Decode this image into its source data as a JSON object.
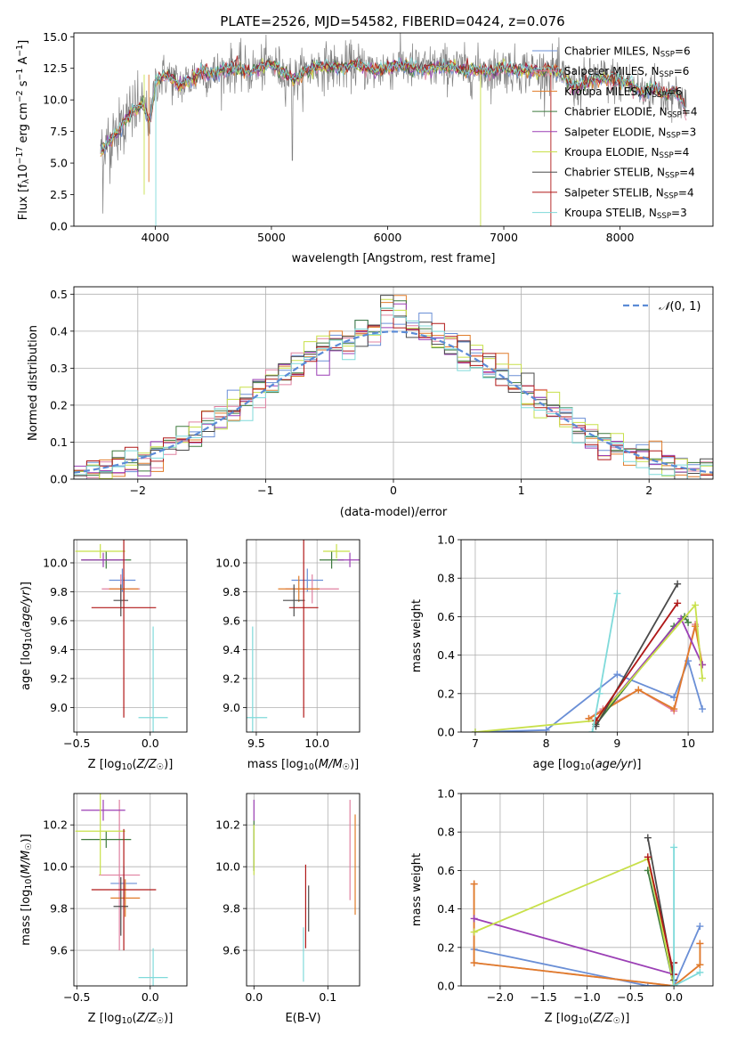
{
  "title": "PLATE=2526, MJD=54582, FIBERID=0424, z=0.076",
  "colors": {
    "chabrier_miles": "#6a8fd6",
    "salpeter_miles": "#e080a0",
    "kroupa_miles": "#e07c2a",
    "chabrier_elodie": "#3e7a3e",
    "salpeter_elodie": "#9b3fb5",
    "kroupa_elodie": "#c8e04a",
    "chabrier_stelib": "#4a4a4a",
    "salpeter_stelib": "#b01818",
    "kroupa_stelib": "#7fdada",
    "data": "#808080",
    "normal": "#5b8bd6"
  },
  "chart_data": [
    {
      "id": "spectrum",
      "type": "line",
      "title": "PLATE=2526, MJD=54582, FIBERID=0424, z=0.076",
      "xlabel": "wavelength [Angstrom, rest frame]",
      "ylabel": "Flux [f_λ 10^-17 erg cm^-2 s^-1 A^-1]",
      "xlim": [
        3300,
        8800
      ],
      "ylim": [
        0,
        15.3
      ],
      "xticks": [
        4000,
        5000,
        6000,
        7000,
        8000
      ],
      "yticks": [
        0.0,
        2.5,
        5.0,
        7.5,
        10.0,
        12.5,
        15.0
      ],
      "legend_position": "right",
      "legend": [
        {
          "label": "Chabrier MILES, N_SSP=6",
          "color": "chabrier_miles"
        },
        {
          "label": "Salpeter MILES, N_SSP=6",
          "color": "salpeter_miles"
        },
        {
          "label": "Kroupa MILES, N_SSP=6",
          "color": "kroupa_miles"
        },
        {
          "label": "Chabrier ELODIE, N_SSP=4",
          "color": "chabrier_elodie"
        },
        {
          "label": "Salpeter ELODIE, N_SSP=3",
          "color": "salpeter_elodie"
        },
        {
          "label": "Kroupa ELODIE, N_SSP=4",
          "color": "kroupa_elodie"
        },
        {
          "label": "Chabrier STELIB, N_SSP=4",
          "color": "chabrier_stelib"
        },
        {
          "label": "Salpeter STELIB, N_SSP=4",
          "color": "salpeter_stelib"
        },
        {
          "label": "Kroupa STELIB, N_SSP=3",
          "color": "kroupa_stelib"
        }
      ],
      "continuum": [
        [
          3530,
          6.0
        ],
        [
          3600,
          6.6
        ],
        [
          3700,
          7.8
        ],
        [
          3800,
          9.0
        ],
        [
          3900,
          9.6
        ],
        [
          3960,
          8.2
        ],
        [
          4000,
          11.5
        ],
        [
          4100,
          12.0
        ],
        [
          4200,
          11.2
        ],
        [
          4300,
          11.6
        ],
        [
          4400,
          12.3
        ],
        [
          4500,
          12.0
        ],
        [
          4600,
          12.4
        ],
        [
          4700,
          12.6
        ],
        [
          4800,
          12.2
        ],
        [
          4900,
          12.5
        ],
        [
          5000,
          12.8
        ],
        [
          5100,
          12.2
        ],
        [
          5200,
          11.6
        ],
        [
          5300,
          12.3
        ],
        [
          5400,
          12.6
        ],
        [
          5500,
          12.7
        ],
        [
          5600,
          12.5
        ],
        [
          5700,
          12.8
        ],
        [
          5800,
          12.6
        ],
        [
          5900,
          12.3
        ],
        [
          6000,
          12.6
        ],
        [
          6100,
          12.8
        ],
        [
          6200,
          12.6
        ],
        [
          6300,
          12.4
        ],
        [
          6400,
          12.6
        ],
        [
          6500,
          12.6
        ],
        [
          6600,
          12.5
        ],
        [
          6700,
          12.3
        ],
        [
          6800,
          12.4
        ],
        [
          6900,
          12.2
        ],
        [
          7000,
          12.6
        ],
        [
          7100,
          12.3
        ],
        [
          7200,
          12.4
        ],
        [
          7300,
          12.2
        ],
        [
          7400,
          12.4
        ],
        [
          7500,
          12.0
        ],
        [
          7600,
          11.0
        ],
        [
          7700,
          11.3
        ],
        [
          7800,
          11.7
        ],
        [
          7900,
          11.6
        ],
        [
          8000,
          11.5
        ],
        [
          8100,
          11.2
        ],
        [
          8200,
          10.5
        ],
        [
          8300,
          11.0
        ],
        [
          8400,
          10.2
        ],
        [
          8450,
          10.8
        ],
        [
          8500,
          10.4
        ],
        [
          8540,
          9.8
        ],
        [
          8570,
          9.0
        ]
      ]
    },
    {
      "id": "residuals",
      "type": "histogram",
      "xlabel": "(data-model)/error",
      "ylabel": "Normed distribution",
      "xlim": [
        -2.5,
        2.5
      ],
      "ylim": [
        0,
        0.52
      ],
      "xticks": [
        -2,
        -1,
        0,
        1,
        2
      ],
      "yticks": [
        0.0,
        0.1,
        0.2,
        0.3,
        0.4,
        0.5
      ],
      "legend_position": "top-right",
      "normal_label": "N(0,1)",
      "bin_width": 0.1
    },
    {
      "id": "age_vs_z",
      "type": "errorbar",
      "xlabel": "Z [log10(Z/Z☉)]",
      "ylabel": "age  [log10(age/yr)]",
      "xlim": [
        -0.52,
        0.25
      ],
      "ylim": [
        8.83,
        10.16
      ],
      "xticks": [
        -0.5,
        0.0
      ],
      "yticks": [
        9.0,
        9.2,
        9.4,
        9.6,
        9.8,
        10.0
      ],
      "points": [
        {
          "color": "chabrier_miles",
          "x": -0.19,
          "y": 9.88,
          "xerr": 0.09,
          "yerr": 0.08
        },
        {
          "color": "salpeter_miles",
          "x": -0.2,
          "y": 9.82,
          "xerr": 0.13,
          "yerr": 0.1
        },
        {
          "color": "kroupa_miles",
          "x": -0.18,
          "y": 9.82,
          "xerr": 0.1,
          "yerr": 0.08
        },
        {
          "color": "chabrier_elodie",
          "x": -0.3,
          "y": 10.02,
          "xerr": 0.17,
          "yerr": 0.06
        },
        {
          "color": "salpeter_elodie",
          "x": -0.32,
          "y": 10.02,
          "xerr": 0.15,
          "yerr": 0.05
        },
        {
          "color": "kroupa_elodie",
          "x": -0.34,
          "y": 10.08,
          "xerr": 0.17,
          "yerr": 0.05
        },
        {
          "color": "chabrier_stelib",
          "x": -0.2,
          "y": 9.74,
          "xerr": 0.05,
          "yerr": 0.11
        },
        {
          "color": "salpeter_stelib",
          "x": -0.18,
          "y": 9.69,
          "xerr": 0.22,
          "yerr": 0.76
        },
        {
          "color": "kroupa_stelib",
          "x": 0.02,
          "y": 8.93,
          "xerr": 0.1,
          "yerr": 0.63
        }
      ]
    },
    {
      "id": "age_vs_mass",
      "type": "errorbar",
      "xlabel": "mass [log10(M/M☉)]",
      "ylabel": "",
      "xlim": [
        9.42,
        10.35
      ],
      "ylim": [
        8.83,
        10.16
      ],
      "xticks": [
        9.5,
        10.0
      ],
      "yticks": [
        9.0,
        9.2,
        9.4,
        9.6,
        9.8,
        10.0
      ],
      "points": [
        {
          "color": "chabrier_miles",
          "x": 9.92,
          "y": 9.88,
          "xerr": 0.13,
          "yerr": 0.08
        },
        {
          "color": "salpeter_miles",
          "x": 9.96,
          "y": 9.82,
          "xerr": 0.22,
          "yerr": 0.1
        },
        {
          "color": "kroupa_miles",
          "x": 9.85,
          "y": 9.82,
          "xerr": 0.17,
          "yerr": 0.09
        },
        {
          "color": "chabrier_elodie",
          "x": 10.12,
          "y": 10.02,
          "xerr": 0.1,
          "yerr": 0.06
        },
        {
          "color": "salpeter_elodie",
          "x": 10.27,
          "y": 10.02,
          "xerr": 0.1,
          "yerr": 0.05
        },
        {
          "color": "kroupa_elodie",
          "x": 10.16,
          "y": 10.08,
          "xerr": 0.11,
          "yerr": 0.05
        },
        {
          "color": "chabrier_stelib",
          "x": 9.81,
          "y": 9.74,
          "xerr": 0.09,
          "yerr": 0.11
        },
        {
          "color": "salpeter_stelib",
          "x": 9.89,
          "y": 9.69,
          "xerr": 0.12,
          "yerr": 0.76
        },
        {
          "color": "kroupa_stelib",
          "x": 9.47,
          "y": 8.93,
          "xerr": 0.12,
          "yerr": 0.63
        }
      ]
    },
    {
      "id": "weight_vs_age",
      "type": "line",
      "xlabel": "age  [log10(age/yr)]",
      "ylabel": "mass weight",
      "xlim": [
        6.8,
        10.35
      ],
      "ylim": [
        0,
        1.0
      ],
      "xticks": [
        7,
        8,
        9,
        10
      ],
      "yticks": [
        0.0,
        0.2,
        0.4,
        0.6,
        0.8,
        1.0
      ],
      "series": [
        {
          "color": "chabrier_miles",
          "x": [
            7.0,
            8.0,
            9.0,
            9.8,
            10.0,
            10.2
          ],
          "y": [
            0.0,
            0.01,
            0.3,
            0.18,
            0.37,
            0.12
          ]
        },
        {
          "color": "salpeter_miles",
          "x": [
            8.6,
            8.8,
            9.3,
            9.8,
            10.1,
            10.2
          ],
          "y": [
            0.07,
            0.12,
            0.22,
            0.11,
            0.56,
            0.35
          ]
        },
        {
          "color": "kroupa_miles",
          "x": [
            8.6,
            8.8,
            9.3,
            9.8,
            10.1,
            10.2
          ],
          "y": [
            0.07,
            0.11,
            0.22,
            0.12,
            0.55,
            0.35
          ]
        },
        {
          "color": "chabrier_elodie",
          "x": [
            8.7,
            9.8,
            9.95,
            10.0
          ],
          "y": [
            0.04,
            0.55,
            0.6,
            0.57
          ]
        },
        {
          "color": "salpeter_elodie",
          "x": [
            8.7,
            9.9,
            10.2
          ],
          "y": [
            0.06,
            0.59,
            0.35
          ]
        },
        {
          "color": "kroupa_elodie",
          "x": [
            7.0,
            8.7,
            10.1,
            10.2
          ],
          "y": [
            0.0,
            0.06,
            0.66,
            0.28
          ]
        },
        {
          "color": "chabrier_stelib",
          "x": [
            8.7,
            9.85
          ],
          "y": [
            0.03,
            0.77
          ]
        },
        {
          "color": "salpeter_stelib",
          "x": [
            8.7,
            9.85
          ],
          "y": [
            0.06,
            0.67
          ]
        },
        {
          "color": "kroupa_stelib",
          "x": [
            8.65,
            8.75,
            9.0
          ],
          "y": [
            0.0,
            0.2,
            0.72
          ]
        }
      ]
    },
    {
      "id": "mass_vs_z",
      "type": "errorbar",
      "xlabel": "Z [log10(Z/Z☉)]",
      "ylabel": "mass [log10(M/M☉)]",
      "xlim": [
        -0.52,
        0.25
      ],
      "ylim": [
        9.43,
        10.35
      ],
      "xticks": [
        -0.5,
        0.0
      ],
      "yticks": [
        9.6,
        9.8,
        10.0,
        10.2
      ],
      "points": [
        {
          "color": "chabrier_miles",
          "x": -0.18,
          "y": 9.92,
          "xerr": 0.09,
          "yerr": 0.08
        },
        {
          "color": "salpeter_miles",
          "x": -0.21,
          "y": 9.96,
          "xerr": 0.14,
          "yerr": 0.36
        },
        {
          "color": "kroupa_miles",
          "x": -0.17,
          "y": 9.85,
          "xerr": 0.1,
          "yerr": 0.09
        },
        {
          "color": "chabrier_elodie",
          "x": -0.3,
          "y": 10.13,
          "xerr": 0.17,
          "yerr": 0.04
        },
        {
          "color": "salpeter_elodie",
          "x": -0.32,
          "y": 10.27,
          "xerr": 0.15,
          "yerr": 0.05
        },
        {
          "color": "kroupa_elodie",
          "x": -0.34,
          "y": 10.17,
          "xerr": 0.17,
          "yerr": 0.21
        },
        {
          "color": "chabrier_stelib",
          "x": -0.2,
          "y": 9.81,
          "xerr": 0.05,
          "yerr": 0.14
        },
        {
          "color": "salpeter_stelib",
          "x": -0.18,
          "y": 9.89,
          "xerr": 0.22,
          "yerr": 0.29
        },
        {
          "color": "kroupa_stelib",
          "x": 0.02,
          "y": 9.47,
          "xerr": 0.1,
          "yerr": 0.14
        }
      ]
    },
    {
      "id": "mass_vs_ebv",
      "type": "errorbar",
      "xlabel": "E(B-V)",
      "ylabel": "",
      "xlim": [
        -0.01,
        0.143
      ],
      "ylim": [
        9.43,
        10.35
      ],
      "xticks": [
        0.0,
        0.1
      ],
      "yticks": [
        9.6,
        9.8,
        10.0,
        10.2
      ],
      "points": [
        {
          "color": "chabrier_miles",
          "x": 0.0,
          "y": 10.08,
          "xerr": 0.0,
          "yerr": 0.1
        },
        {
          "color": "salpeter_miles",
          "x": 0.13,
          "y": 10.08,
          "xerr": 0.0,
          "yerr": 0.24
        },
        {
          "color": "kroupa_miles",
          "x": 0.137,
          "y": 10.01,
          "xerr": 0.0,
          "yerr": 0.24
        },
        {
          "color": "chabrier_elodie",
          "x": 0.0,
          "y": 10.1,
          "xerr": 0.0,
          "yerr": 0.12
        },
        {
          "color": "salpeter_elodie",
          "x": 0.0,
          "y": 10.27,
          "xerr": 0.0,
          "yerr": 0.05
        },
        {
          "color": "kroupa_elodie",
          "x": 0.0,
          "y": 10.08,
          "xerr": 0.0,
          "yerr": 0.12
        },
        {
          "color": "chabrier_stelib",
          "x": 0.074,
          "y": 9.8,
          "xerr": 0.0,
          "yerr": 0.11
        },
        {
          "color": "salpeter_stelib",
          "x": 0.07,
          "y": 9.81,
          "xerr": 0.0,
          "yerr": 0.2
        },
        {
          "color": "kroupa_stelib",
          "x": 0.067,
          "y": 9.58,
          "xerr": 0.0,
          "yerr": 0.13
        }
      ]
    },
    {
      "id": "weight_vs_z",
      "type": "line",
      "xlabel": "Z [log10(Z/Z☉)]",
      "ylabel": "mass weight",
      "xlim": [
        -2.45,
        0.45
      ],
      "ylim": [
        0,
        1.0
      ],
      "xticks": [
        -2.0,
        -1.5,
        -1.0,
        -0.5,
        0.0
      ],
      "yticks": [
        0.0,
        0.2,
        0.4,
        0.6,
        0.8,
        1.0
      ],
      "series": [
        {
          "color": "chabrier_miles",
          "x": [
            -2.3,
            -0.3,
            0.0,
            0.3
          ],
          "y": [
            0.19,
            0.0,
            0.0,
            0.31
          ]
        },
        {
          "color": "salpeter_miles",
          "x": [
            -2.3,
            -2.3,
            0.0,
            0.3,
            0.3
          ],
          "y": [
            0.53,
            0.12,
            0.0,
            0.11,
            0.22
          ]
        },
        {
          "color": "kroupa_miles",
          "x": [
            -2.3,
            -2.3,
            0.0,
            0.3,
            0.3
          ],
          "y": [
            0.53,
            0.12,
            0.0,
            0.11,
            0.22
          ]
        },
        {
          "color": "chabrier_elodie",
          "x": [
            -0.3,
            0.0
          ],
          "y": [
            0.6,
            0.0
          ]
        },
        {
          "color": "salpeter_elodie",
          "x": [
            -2.3,
            0.0,
            0.0
          ],
          "y": [
            0.35,
            0.06,
            0.0
          ]
        },
        {
          "color": "kroupa_elodie",
          "x": [
            -2.3,
            -0.3,
            0.0
          ],
          "y": [
            0.28,
            0.66,
            0.0
          ]
        },
        {
          "color": "chabrier_stelib",
          "x": [
            -0.3,
            0.0,
            0.0
          ],
          "y": [
            0.77,
            0.03,
            0.12
          ]
        },
        {
          "color": "salpeter_stelib",
          "x": [
            -0.3,
            0.0,
            0.0
          ],
          "y": [
            0.67,
            0.06,
            0.12
          ]
        },
        {
          "color": "kroupa_stelib",
          "x": [
            0.0,
            0.0,
            0.3
          ],
          "y": [
            0.72,
            0.0,
            0.07
          ]
        }
      ]
    }
  ]
}
